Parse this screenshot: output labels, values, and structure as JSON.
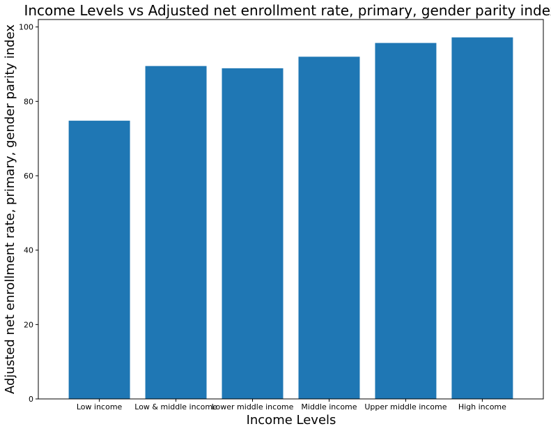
{
  "chart_data": {
    "type": "bar",
    "title": "Income Levels vs Adjusted net enrollment rate, primary, gender parity index",
    "xlabel": "Income Levels",
    "ylabel": "Adjusted net enrollment rate, primary, gender parity index",
    "categories": [
      "Low income",
      "Low & middle income",
      "Lower middle income",
      "Middle income",
      "Upper middle income",
      "High income"
    ],
    "values": [
      74.8,
      89.5,
      88.9,
      92.0,
      95.7,
      97.2
    ],
    "ylim": [
      0,
      102
    ],
    "yticks": [
      0,
      20,
      40,
      60,
      80,
      100
    ],
    "grid": false,
    "legend": "none",
    "bar_color": "#1f77b4"
  }
}
